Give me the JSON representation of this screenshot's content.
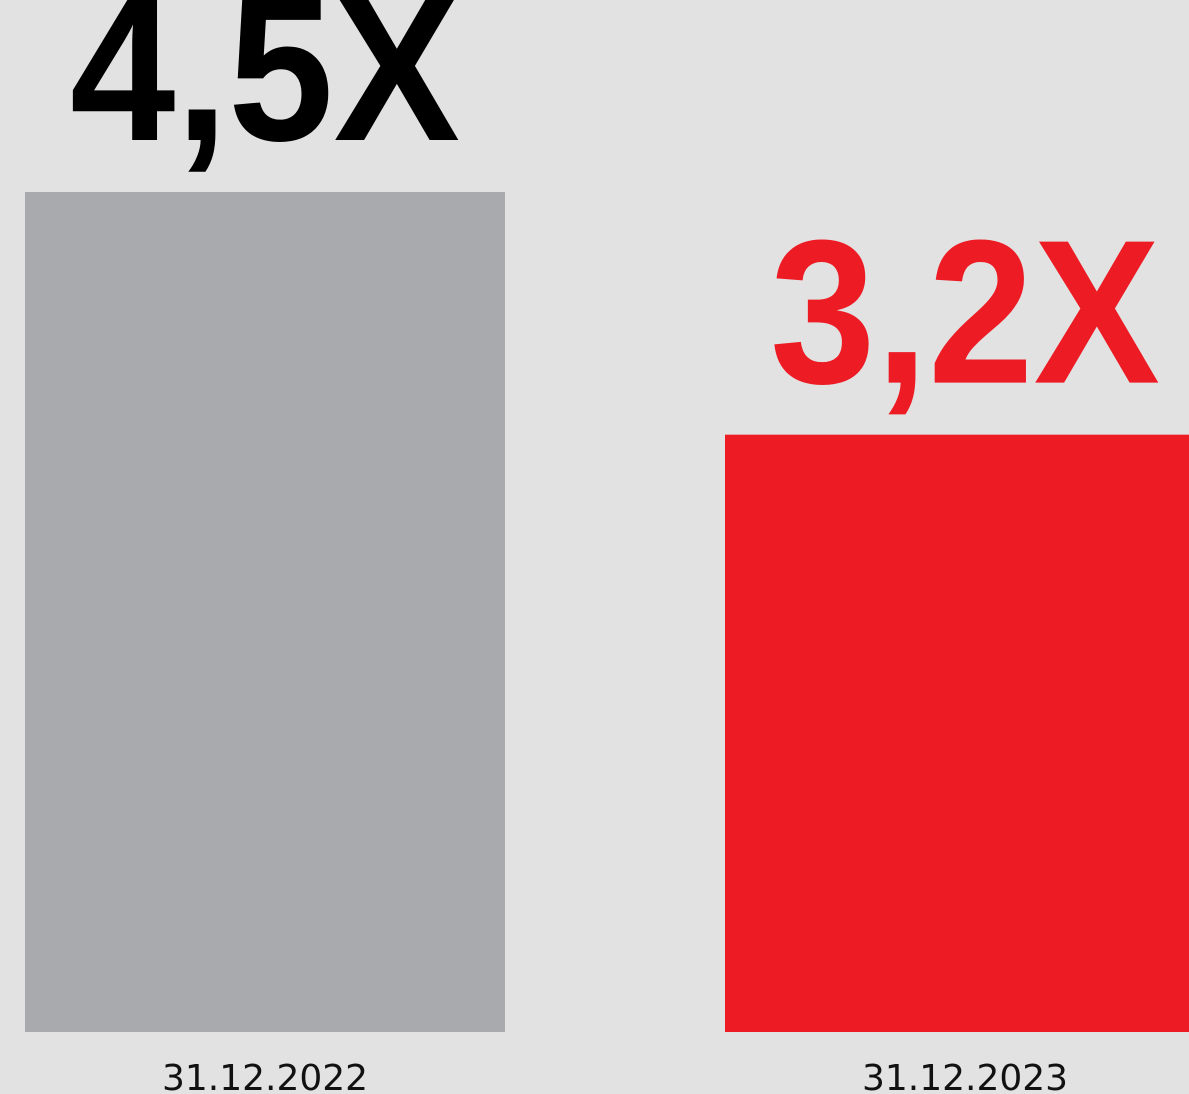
{
  "chart_data": {
    "type": "bar",
    "categories": [
      "31.12.2022",
      "31.12.2023"
    ],
    "values": [
      4.5,
      3.2
    ],
    "value_labels": [
      "4,5X",
      "3,2X"
    ],
    "bar_colors": [
      "#a9aaad",
      "#ed1c24"
    ],
    "label_colors": [
      "#000000",
      "#ed1c24"
    ],
    "ylim": [
      0,
      5.1
    ],
    "title": "",
    "xlabel": "",
    "ylabel": "",
    "grid": false,
    "legend": "none"
  },
  "background": "#e2e2e2"
}
